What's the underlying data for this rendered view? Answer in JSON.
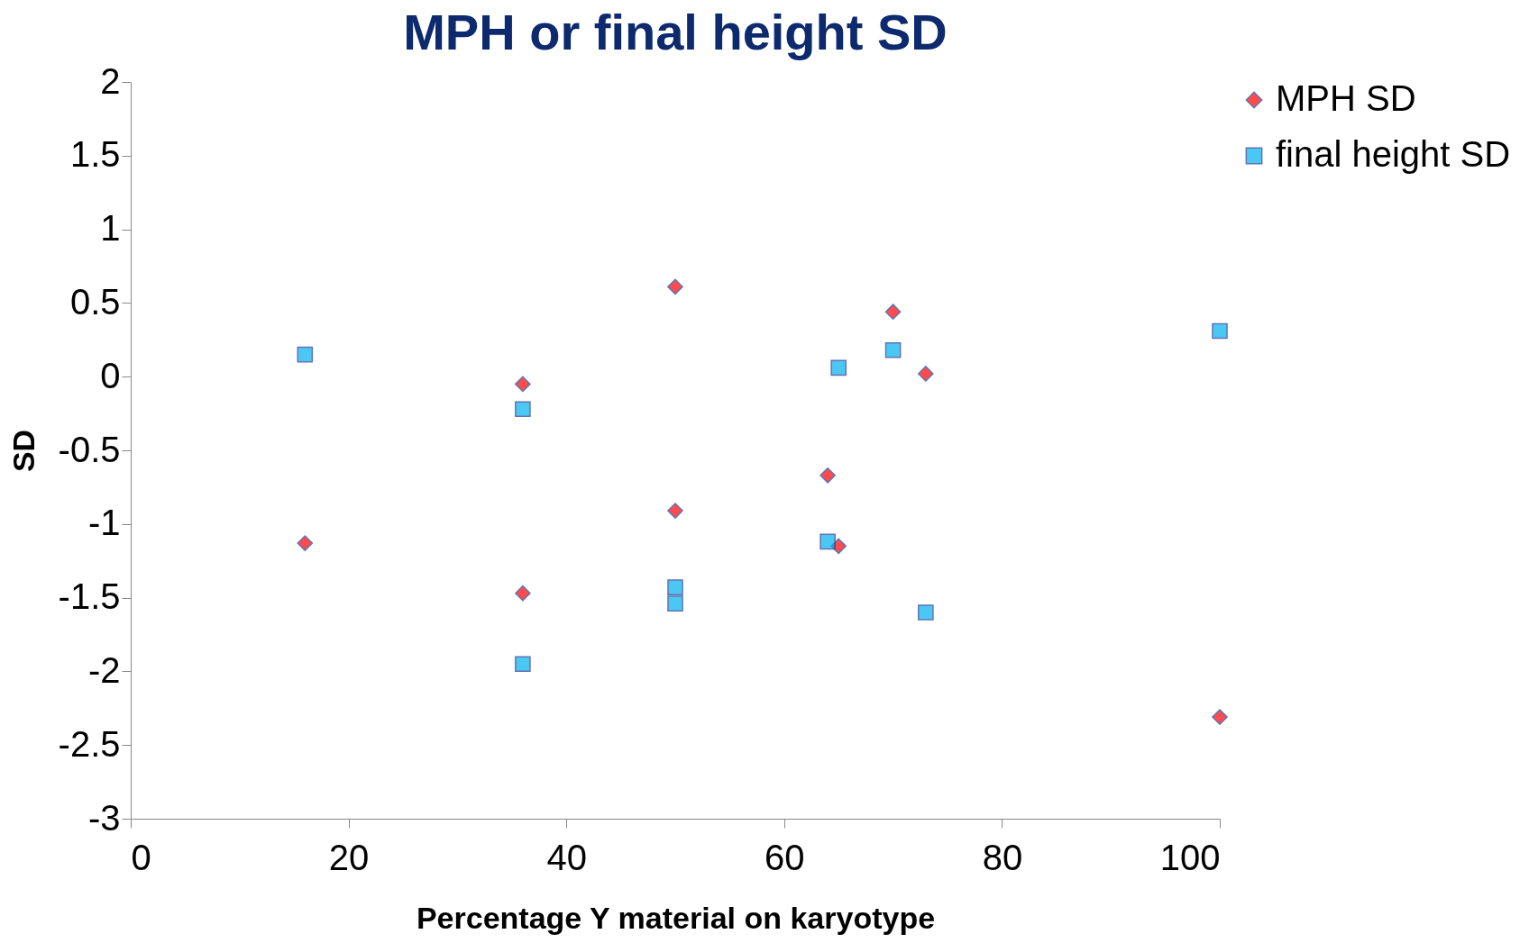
{
  "chart_data": {
    "type": "scatter",
    "title": "MPH or final height SD",
    "xlabel": "Percentage Y material on karyotype",
    "ylabel": "SD",
    "xlim": [
      0,
      100
    ],
    "xticks": [
      0,
      20,
      40,
      60,
      80,
      100
    ],
    "ylim": [
      -3,
      2
    ],
    "yticks": [
      -3,
      -2.5,
      -2,
      -1.5,
      -1,
      -0.5,
      0,
      0.5,
      1,
      1.5,
      2
    ],
    "grid": false,
    "legend": "right",
    "series": [
      {
        "name": "MPH SD",
        "color": "#ff0000",
        "marker": "diamond",
        "x": [
          16,
          36,
          36,
          50,
          50,
          64,
          65,
          70,
          73,
          100
        ],
        "values": [
          -1.13,
          -0.05,
          -1.47,
          0.61,
          -0.91,
          -0.67,
          -1.15,
          0.44,
          0.02,
          -2.31
        ]
      },
      {
        "name": "final height SD",
        "color": "#00b0f0",
        "marker": "square",
        "x": [
          16,
          36,
          36,
          50,
          50,
          64,
          65,
          70,
          73,
          100
        ],
        "values": [
          0.15,
          -0.22,
          -1.95,
          -1.43,
          -1.54,
          -1.12,
          0.06,
          0.18,
          -1.6,
          0.31
        ]
      }
    ]
  }
}
